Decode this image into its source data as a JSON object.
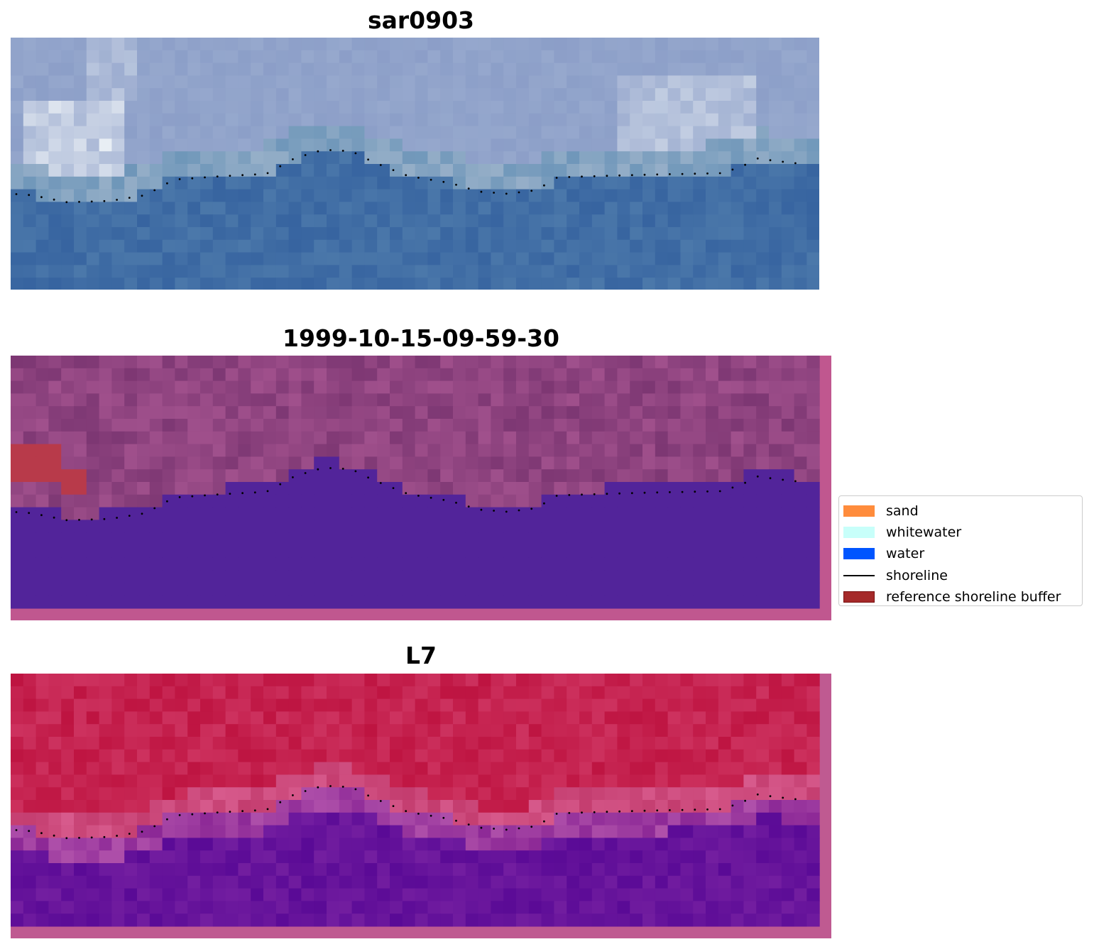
{
  "figure": {
    "panels": [
      {
        "id": "rgb",
        "title": "sar0903",
        "image": "RGB satellite image of beach and sea"
      },
      {
        "id": "classified",
        "title": "1999-10-15-09-59-30",
        "image": "classified image with reference shoreline buffer"
      },
      {
        "id": "index",
        "title": "L7",
        "image": "water index image"
      }
    ]
  },
  "legend": {
    "items": [
      {
        "label": "sand",
        "kind": "patch",
        "color": "#ff8c3c"
      },
      {
        "label": "whitewater",
        "kind": "patch",
        "color": "#c8fffa"
      },
      {
        "label": "water",
        "kind": "patch",
        "color": "#0055ff"
      },
      {
        "label": "shoreline",
        "kind": "line",
        "color": "#000000"
      },
      {
        "label": "reference shoreline buffer",
        "kind": "patch",
        "color": "#a52a2a"
      }
    ]
  },
  "colors": {
    "rgb_land_light": "#c8d2ea",
    "rgb_sea": "#3d6ba3",
    "classified_top": "#8a3f7d",
    "classified_water": "#52249a",
    "classified_buffer": "#b83a4a",
    "classified_border": "#c0578f",
    "index_top": "#c21a46",
    "index_bottom": "#600d98",
    "index_border": "#bf5a91"
  }
}
